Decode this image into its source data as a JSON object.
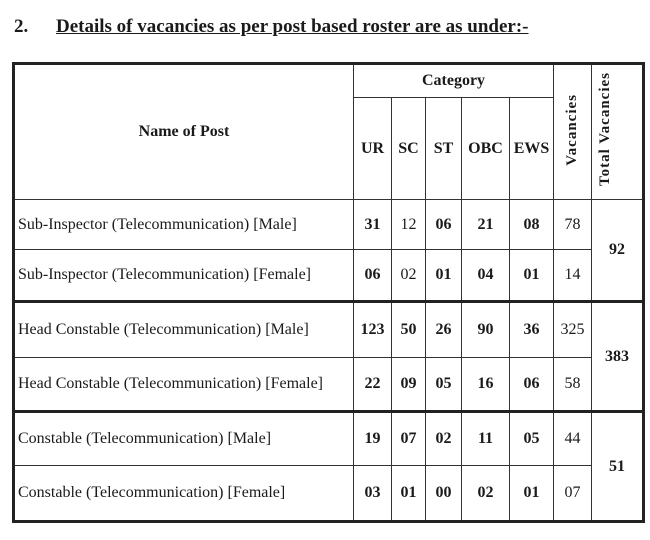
{
  "heading": {
    "number": "2.",
    "text": "Details of vacancies as per post based roster are as under:-"
  },
  "table": {
    "name_header": "Name of Post",
    "category_header": "Category",
    "categories": [
      "UR",
      "SC",
      "ST",
      "OBC",
      "EWS"
    ],
    "vacancies_header": "Vacancies",
    "total_header": "Total Vacancies",
    "groups": [
      {
        "total": "92",
        "rows": [
          {
            "post": "Sub-Inspector (Telecommunication) [Male]",
            "values": [
              "31",
              "12",
              "06",
              "21",
              "08"
            ],
            "vacancies": "78"
          },
          {
            "post": "Sub-Inspector (Telecommunication) [Female]",
            "values": [
              "06",
              "02",
              "01",
              "04",
              "01"
            ],
            "vacancies": "14"
          }
        ]
      },
      {
        "total": "383",
        "rows": [
          {
            "post": "Head Constable (Telecommunication) [Male]",
            "values": [
              "123",
              "50",
              "26",
              "90",
              "36"
            ],
            "vacancies": "325"
          },
          {
            "post": "Head Constable (Telecommunication) [Female]",
            "values": [
              "22",
              "09",
              "05",
              "16",
              "06"
            ],
            "vacancies": "58"
          }
        ]
      },
      {
        "total": "51",
        "rows": [
          {
            "post": "Constable (Telecommunication) [Male]",
            "values": [
              "19",
              "07",
              "02",
              "11",
              "05"
            ],
            "vacancies": "44"
          },
          {
            "post": "Constable (Telecommunication) [Female]",
            "values": [
              "03",
              "01",
              "00",
              "02",
              "01"
            ],
            "vacancies": "07"
          }
        ]
      }
    ]
  }
}
